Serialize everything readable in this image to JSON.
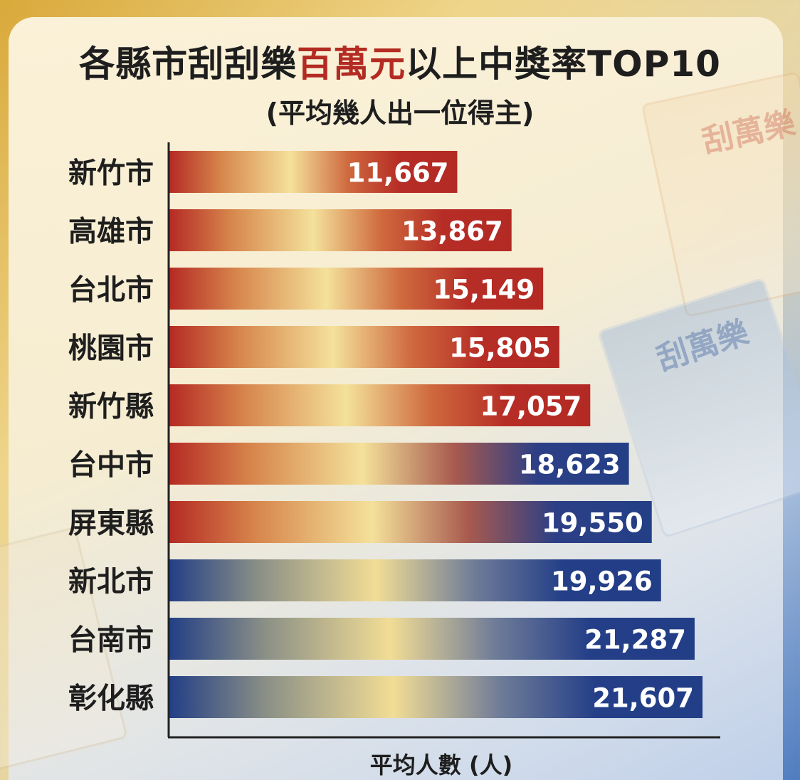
{
  "title": {
    "prefix": "各縣市刮刮樂",
    "highlight": "百萬元",
    "suffix": "以上中獎率TOP10"
  },
  "subtitle": "(平均幾人出一位得主)",
  "decor": {
    "ticket_text": "刮萬樂"
  },
  "colors": {
    "title_highlight": "#b32b22",
    "bar_red": "#b52a24",
    "bar_blue": "#233f86",
    "bar_gold": "#f2dd95"
  },
  "chart_data": {
    "type": "bar",
    "orientation": "horizontal",
    "categories": [
      "新竹市",
      "高雄市",
      "台北市",
      "桃園市",
      "新竹縣",
      "台中市",
      "屏東縣",
      "新北市",
      "台南市",
      "彰化縣"
    ],
    "values": [
      11667,
      13867,
      15149,
      15805,
      17057,
      18623,
      19550,
      19926,
      21287,
      21607
    ],
    "value_labels": [
      "11,667",
      "13,867",
      "15,149",
      "15,805",
      "17,057",
      "18,623",
      "19,550",
      "19,926",
      "21,287",
      "21,607"
    ],
    "title": "各縣市刮刮樂百萬元以上中獎率TOP10",
    "subtitle": "(平均幾人出一位得主)",
    "xlabel": "平均人數 (人)",
    "ylabel": "",
    "xlim": [
      0,
      22500
    ],
    "grid": false,
    "legend": "none"
  }
}
